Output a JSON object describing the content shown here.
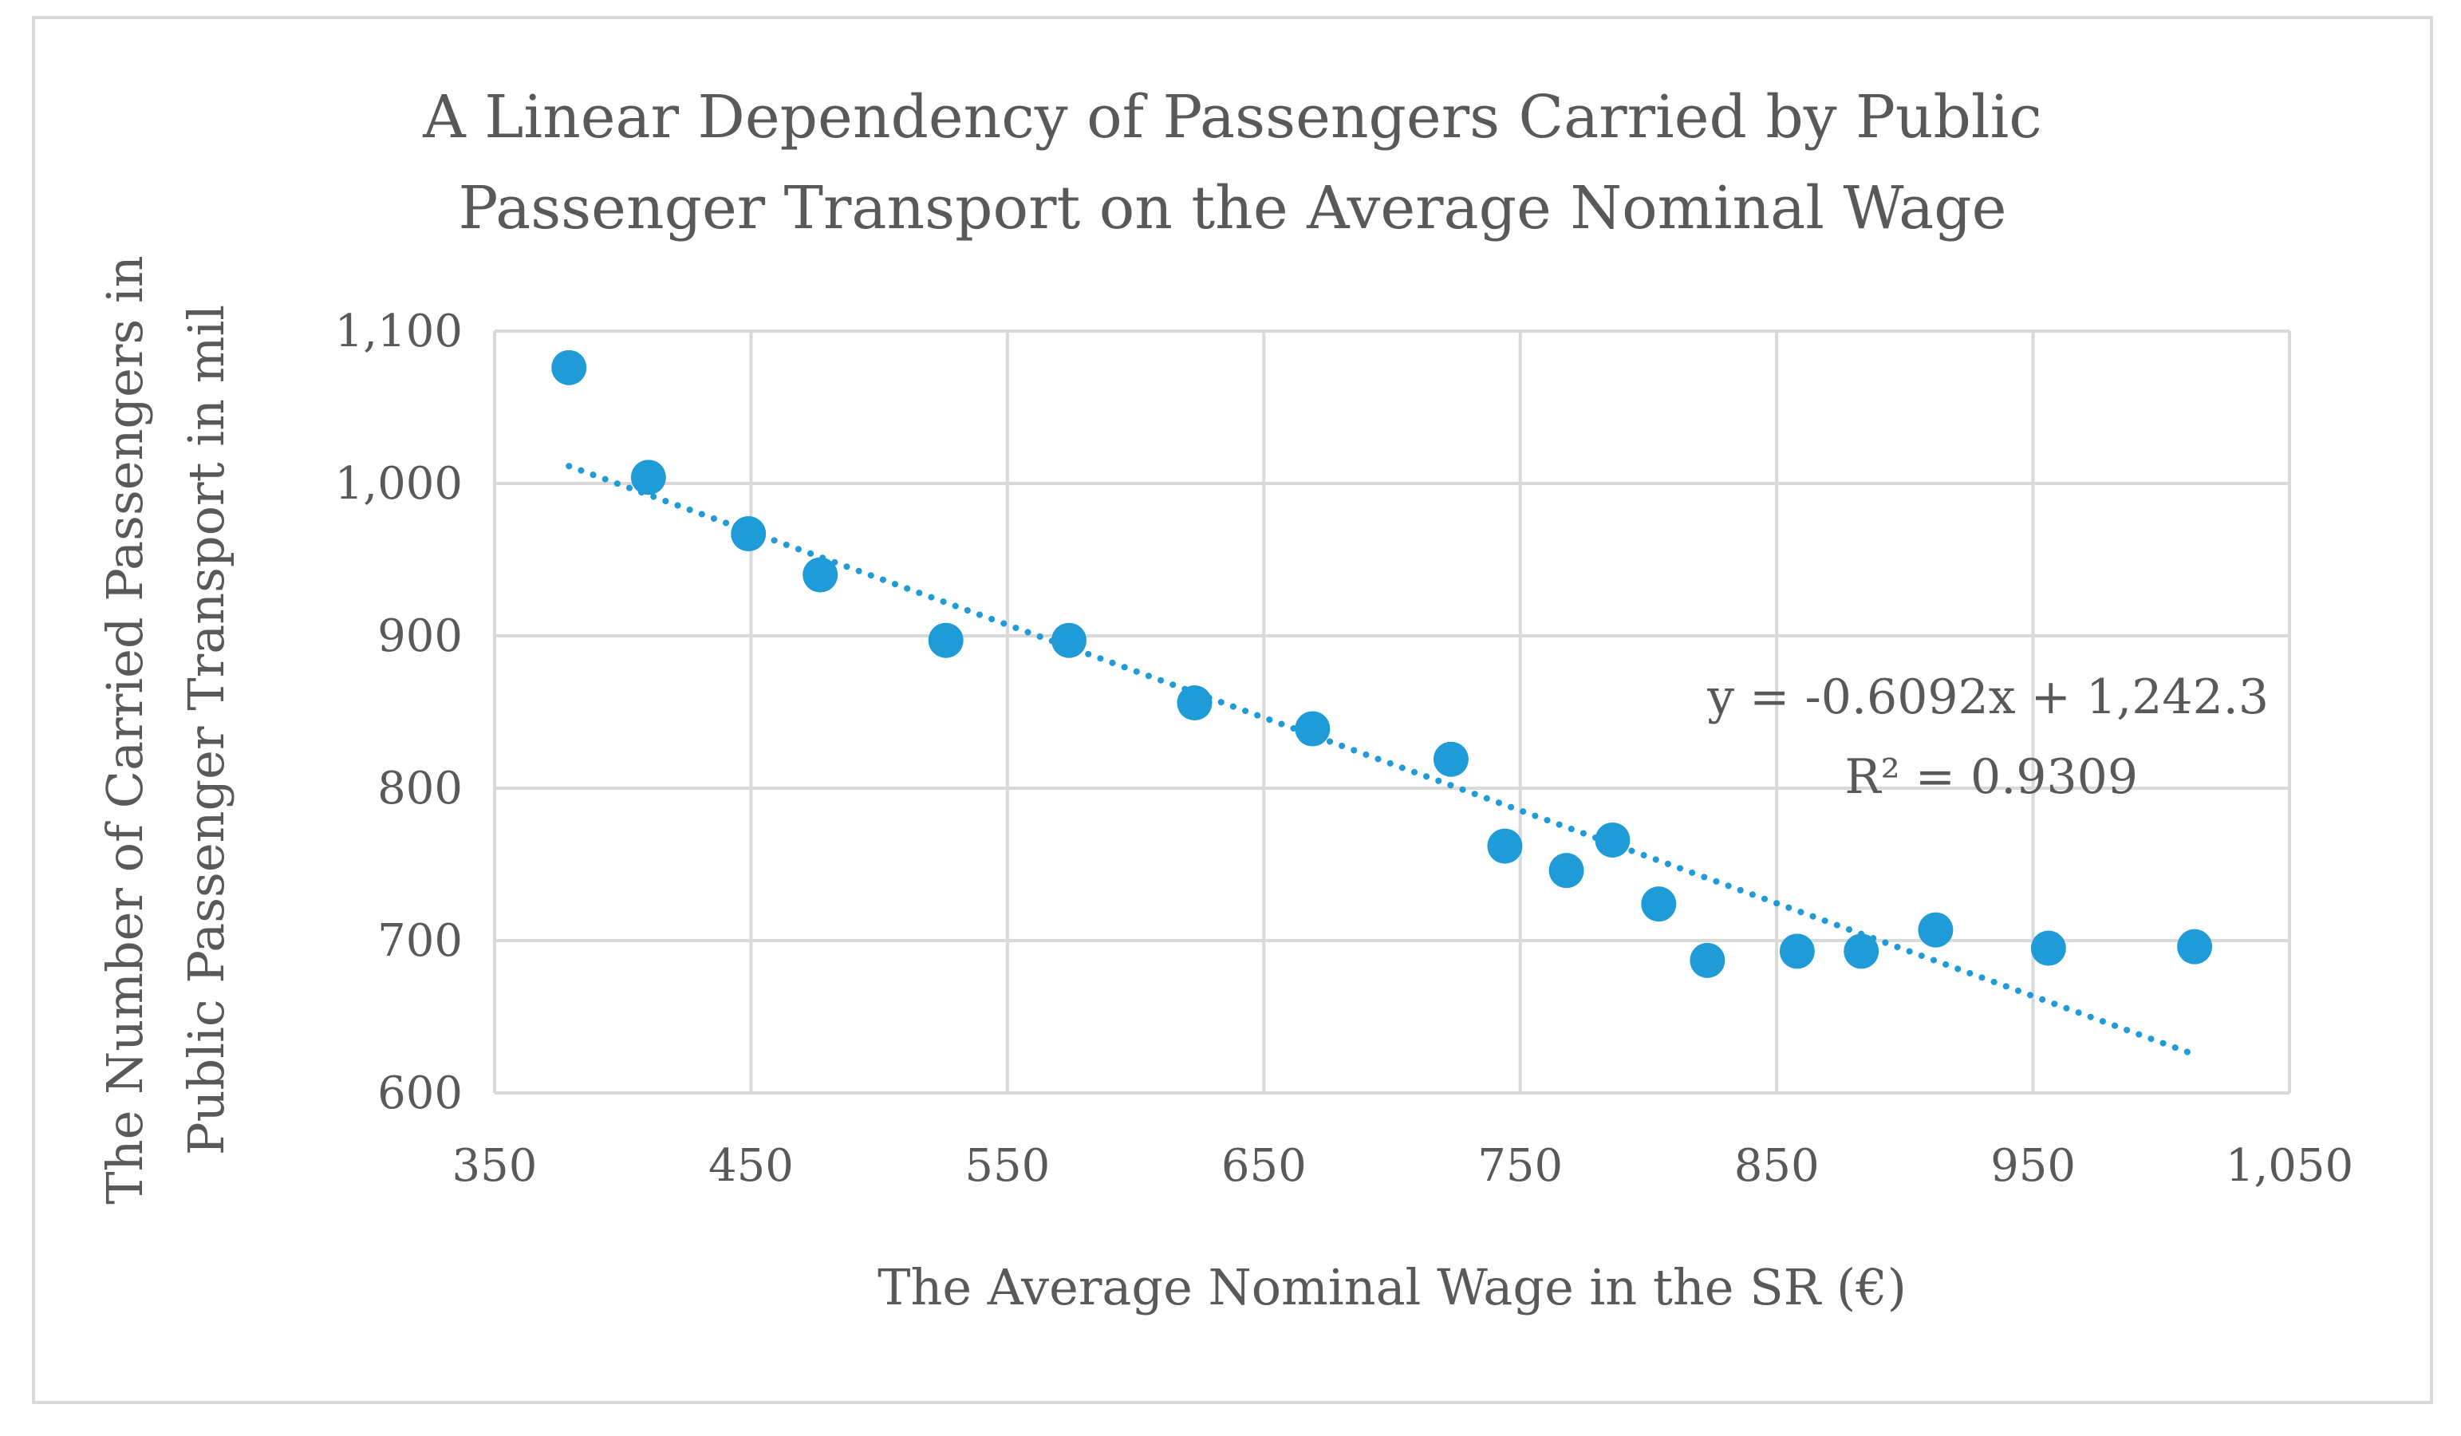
{
  "chart_data": {
    "type": "scatter",
    "title_lines": [
      "A Linear Dependency of Passengers Carried by Public",
      "Passenger Transport on the Average Nominal Wage"
    ],
    "xlabel": "The Average Nominal Wage in the SR (€)",
    "ylabel_lines": [
      "The Number of Carried Passengers in",
      "Public Passenger Transport in mil"
    ],
    "xlim": [
      350,
      1050
    ],
    "ylim": [
      600,
      1100
    ],
    "x_ticks": [
      350,
      450,
      550,
      650,
      750,
      850,
      950,
      1050
    ],
    "x_tick_labels": [
      "350",
      "450",
      "550",
      "650",
      "750",
      "850",
      "950",
      "1,050"
    ],
    "y_ticks": [
      600,
      700,
      800,
      900,
      1000,
      1100
    ],
    "y_tick_labels": [
      "600",
      "700",
      "800",
      "900",
      "1,000",
      "1,100"
    ],
    "grid": true,
    "series": [
      {
        "marker_color": "#1f9bd7",
        "points": [
          {
            "x": 379,
            "y": 1076
          },
          {
            "x": 410,
            "y": 1004
          },
          {
            "x": 449,
            "y": 967
          },
          {
            "x": 477,
            "y": 940
          },
          {
            "x": 526,
            "y": 897
          },
          {
            "x": 574,
            "y": 897
          },
          {
            "x": 623,
            "y": 856
          },
          {
            "x": 669,
            "y": 839
          },
          {
            "x": 723,
            "y": 819
          },
          {
            "x": 744,
            "y": 762
          },
          {
            "x": 768,
            "y": 746
          },
          {
            "x": 786,
            "y": 766
          },
          {
            "x": 804,
            "y": 724
          },
          {
            "x": 823,
            "y": 687
          },
          {
            "x": 858,
            "y": 693
          },
          {
            "x": 883,
            "y": 693
          },
          {
            "x": 912,
            "y": 707
          },
          {
            "x": 956,
            "y": 695
          },
          {
            "x": 1013,
            "y": 696
          }
        ]
      }
    ],
    "trendline": {
      "type": "linear",
      "style": "dotted",
      "color": "#1f9bd7",
      "slope": -0.6092,
      "intercept": 1242.3,
      "x_range": [
        379,
        1013
      ],
      "equation_label": "y = -0.6092x + 1,242.3",
      "r_squared_label": "R² = 0.9309"
    },
    "colors": {
      "grid": "#d9d9d9",
      "text": "#595959",
      "frame": "#d9d9d9"
    }
  }
}
